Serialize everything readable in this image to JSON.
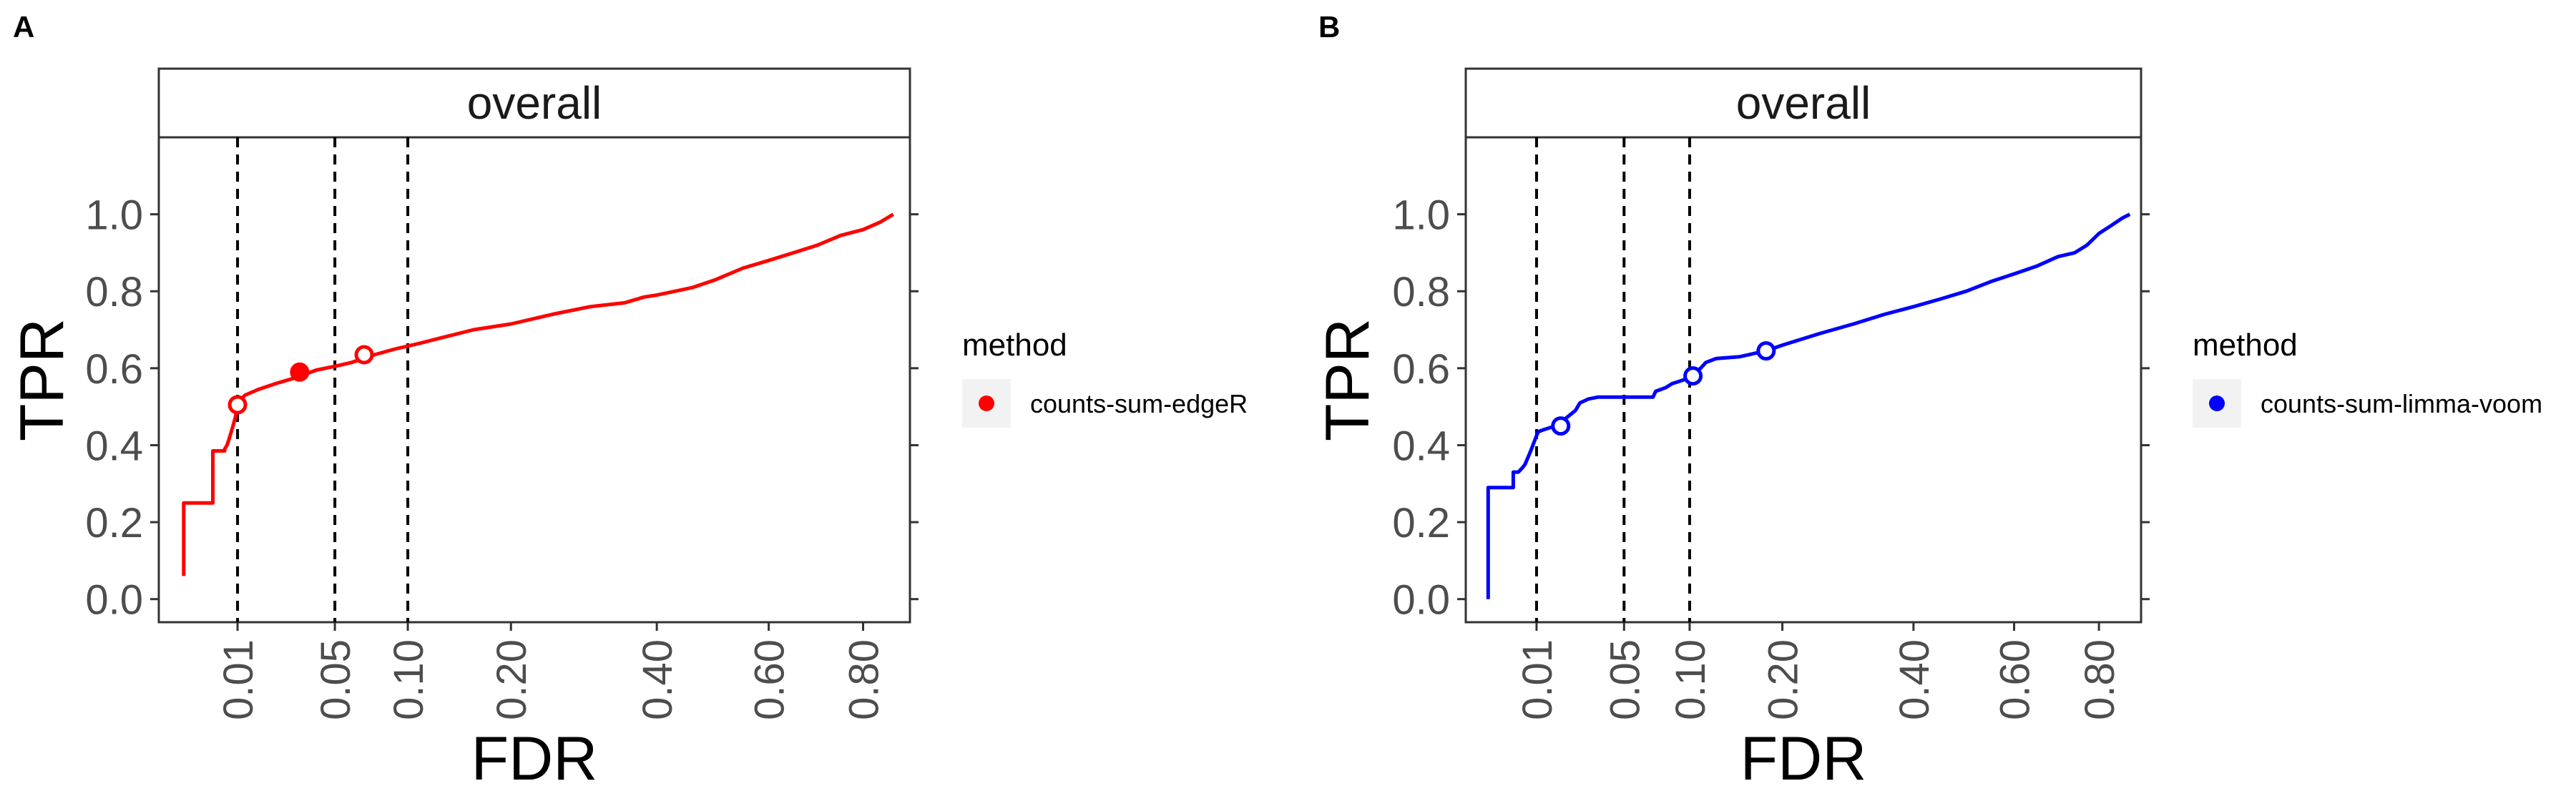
{
  "chart_data": [
    {
      "type": "line",
      "panel_tag": "A",
      "facet": "overall",
      "xlabel": "FDR",
      "ylabel": "TPR",
      "x_scale": "sqrt",
      "xlim": [
        0,
        0.91
      ],
      "ylim": [
        -0.06,
        1.2
      ],
      "x_ticks": [
        0.01,
        0.05,
        0.1,
        0.2,
        0.4,
        0.6,
        0.8
      ],
      "x_tick_labels": [
        "0.01",
        "0.05",
        "0.10",
        "0.20",
        "0.40",
        "0.60",
        "0.80"
      ],
      "y_ticks": [
        0.0,
        0.2,
        0.4,
        0.6,
        0.8,
        1.0
      ],
      "y_tick_labels": [
        "0.0",
        "0.2",
        "0.4",
        "0.6",
        "0.8",
        "1.0"
      ],
      "vlines": [
        0.01,
        0.05,
        0.1
      ],
      "grid": false,
      "legend": {
        "title": "method",
        "position": "right"
      },
      "series": [
        {
          "name": "counts-sum-edgeR",
          "color": "#ff0000",
          "x": [
            0.001,
            0.001,
            0.0045,
            0.0045,
            0.0047,
            0.0047,
            0.007,
            0.007,
            0.0075,
            0.0078,
            0.0082,
            0.0086,
            0.009,
            0.0094,
            0.0098,
            0.01,
            0.012,
            0.016,
            0.022,
            0.03,
            0.04,
            0.05,
            0.06,
            0.075,
            0.09,
            0.11,
            0.13,
            0.16,
            0.2,
            0.25,
            0.3,
            0.35,
            0.38,
            0.4,
            0.43,
            0.46,
            0.5,
            0.55,
            0.6,
            0.65,
            0.7,
            0.75,
            0.8,
            0.84,
            0.87
          ],
          "y": [
            0.06,
            0.25,
            0.25,
            0.25,
            0.25,
            0.385,
            0.385,
            0.39,
            0.4,
            0.41,
            0.425,
            0.44,
            0.455,
            0.47,
            0.49,
            0.51,
            0.53,
            0.545,
            0.56,
            0.575,
            0.595,
            0.605,
            0.615,
            0.635,
            0.65,
            0.665,
            0.68,
            0.7,
            0.715,
            0.74,
            0.76,
            0.77,
            0.785,
            0.79,
            0.8,
            0.81,
            0.83,
            0.86,
            0.88,
            0.9,
            0.92,
            0.945,
            0.96,
            0.98,
            1.0
          ],
          "points": [
            {
              "x": 0.01,
              "y": 0.505,
              "filled": false
            },
            {
              "x": 0.032,
              "y": 0.59,
              "filled": true
            },
            {
              "x": 0.068,
              "y": 0.635,
              "filled": false
            }
          ]
        }
      ]
    },
    {
      "type": "line",
      "panel_tag": "B",
      "facet": "overall",
      "xlabel": "FDR",
      "ylabel": "TPR",
      "x_scale": "sqrt",
      "xlim": [
        0,
        0.91
      ],
      "ylim": [
        -0.06,
        1.2
      ],
      "x_ticks": [
        0.01,
        0.05,
        0.1,
        0.2,
        0.4,
        0.6,
        0.8
      ],
      "x_tick_labels": [
        "0.01",
        "0.05",
        "0.10",
        "0.20",
        "0.40",
        "0.60",
        "0.80"
      ],
      "y_ticks": [
        0.0,
        0.2,
        0.4,
        0.6,
        0.8,
        1.0
      ],
      "y_tick_labels": [
        "0.0",
        "0.2",
        "0.4",
        "0.6",
        "0.8",
        "1.0"
      ],
      "vlines": [
        0.01,
        0.05,
        0.1
      ],
      "grid": false,
      "legend": {
        "title": "method",
        "position": "right"
      },
      "series": [
        {
          "name": "counts-sum-limma-voom",
          "color": "#0000ff",
          "x": [
            0.001,
            0.001,
            0.0045,
            0.0045,
            0.0055,
            0.0063,
            0.007,
            0.0078,
            0.0086,
            0.0094,
            0.01,
            0.0105,
            0.012,
            0.016,
            0.02,
            0.024,
            0.026,
            0.028,
            0.03,
            0.035,
            0.045,
            0.06,
            0.07,
            0.072,
            0.076,
            0.08,
            0.085,
            0.09,
            0.1,
            0.105,
            0.11,
            0.115,
            0.125,
            0.15,
            0.18,
            0.2,
            0.25,
            0.3,
            0.35,
            0.4,
            0.45,
            0.5,
            0.55,
            0.6,
            0.65,
            0.7,
            0.74,
            0.77,
            0.8,
            0.83,
            0.86,
            0.88
          ],
          "y": [
            0.0,
            0.29,
            0.29,
            0.33,
            0.33,
            0.34,
            0.35,
            0.37,
            0.39,
            0.41,
            0.425,
            0.435,
            0.44,
            0.45,
            0.47,
            0.49,
            0.51,
            0.515,
            0.52,
            0.525,
            0.525,
            0.525,
            0.525,
            0.54,
            0.545,
            0.55,
            0.56,
            0.565,
            0.575,
            0.59,
            0.6,
            0.615,
            0.625,
            0.63,
            0.645,
            0.66,
            0.69,
            0.715,
            0.74,
            0.76,
            0.78,
            0.8,
            0.825,
            0.845,
            0.865,
            0.89,
            0.9,
            0.92,
            0.95,
            0.97,
            0.99,
            1.0
          ],
          "points": [
            {
              "x": 0.018,
              "y": 0.45,
              "filled": false
            },
            {
              "x": 0.103,
              "y": 0.58,
              "filled": false
            },
            {
              "x": 0.18,
              "y": 0.645,
              "filled": false
            }
          ]
        }
      ]
    }
  ]
}
